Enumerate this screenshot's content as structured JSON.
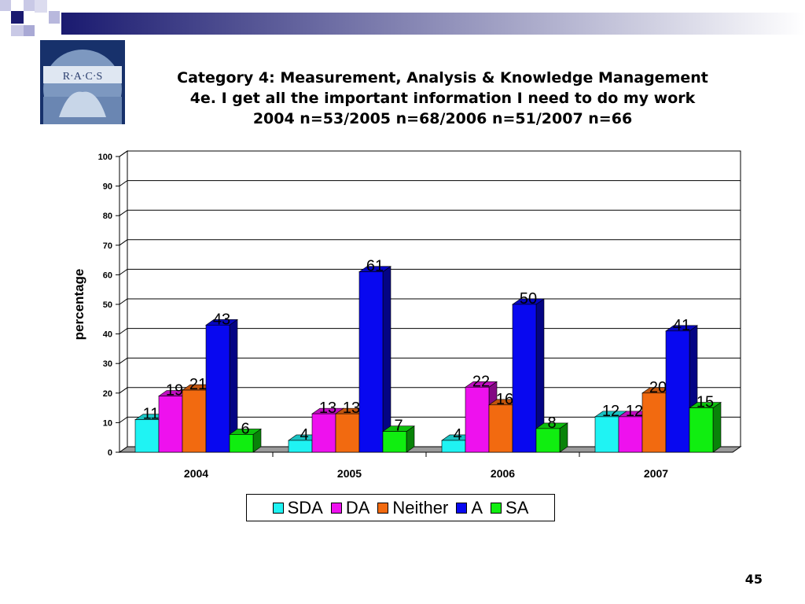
{
  "slide": {
    "logo_text": "R·A·C·S",
    "title_lines": [
      "Category 4: Measurement, Analysis & Knowledge Management",
      "4e. I get all the important information I need to do my work",
      "2004 n=53/2005 n=68/2006 n=51/2007 n=66"
    ],
    "page_number": "45"
  },
  "colors": {
    "banner_dark": "#1a1a70",
    "banner_light": "#ffffff",
    "logo_bg": "#17316b",
    "logo_circle": "#7d98c0",
    "gridline": "#000000",
    "floor": "#9a9a9a"
  },
  "chart_data": {
    "type": "bar",
    "title": "",
    "xlabel": "",
    "ylabel": "percentage",
    "ylim": [
      0,
      100
    ],
    "yticks": [
      "0",
      "10",
      "20",
      "30",
      "40",
      "50",
      "60",
      "70",
      "80",
      "90",
      "100"
    ],
    "grid": true,
    "three_d": true,
    "legend_position": "bottom",
    "categories": [
      "2004",
      "2005",
      "2006",
      "2007"
    ],
    "series": [
      {
        "name": "SDA",
        "color": "#1ff3f3",
        "values": [
          11,
          4,
          4,
          12
        ]
      },
      {
        "name": "DA",
        "color": "#ee11ee",
        "values": [
          19,
          13,
          22,
          12
        ]
      },
      {
        "name": "Neither",
        "color": "#f26a10",
        "values": [
          21,
          13,
          16,
          20
        ]
      },
      {
        "name": "A",
        "color": "#0808f0",
        "values": [
          43,
          61,
          50,
          41
        ]
      },
      {
        "name": "SA",
        "color": "#10ee10",
        "values": [
          6,
          7,
          8,
          15
        ]
      }
    ]
  }
}
